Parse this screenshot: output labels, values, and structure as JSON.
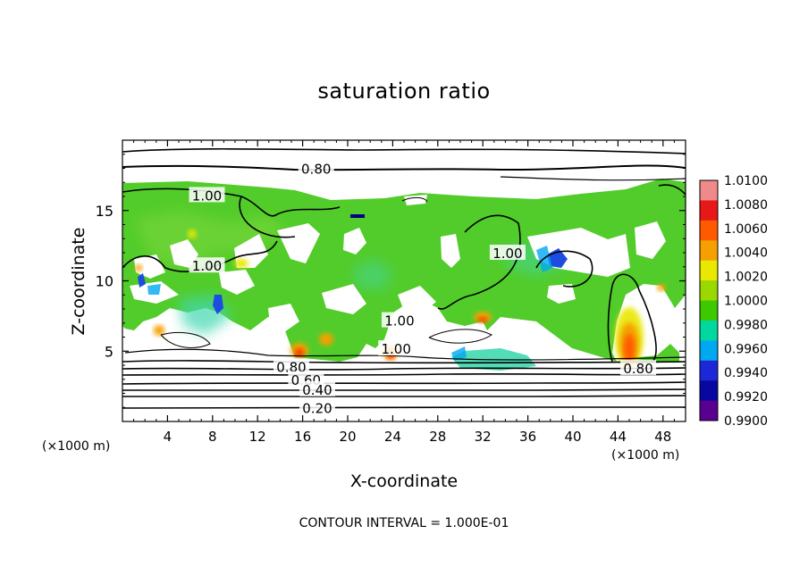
{
  "chart_data": {
    "type": "heatmap",
    "title": "saturation ratio",
    "xlabel": "X-coordinate",
    "ylabel": "Z-coordinate",
    "x_unit_label": "(×1000 m)",
    "footnote": "CONTOUR INTERVAL = 1.000E-01",
    "xlim": [
      0,
      50
    ],
    "ylim": [
      0,
      20
    ],
    "x_ticks": [
      "4",
      "8",
      "12",
      "16",
      "20",
      "24",
      "28",
      "32",
      "36",
      "40",
      "44",
      "48"
    ],
    "x_tick_values": [
      4,
      8,
      12,
      16,
      20,
      24,
      28,
      32,
      36,
      40,
      44,
      48
    ],
    "y_ticks": [
      "5",
      "10",
      "15"
    ],
    "y_tick_values": [
      5,
      10,
      15
    ],
    "colorbar": {
      "labels": [
        "1.0100",
        "1.0080",
        "1.0060",
        "1.0040",
        "1.0020",
        "1.0000",
        "0.9980",
        "0.9960",
        "0.9940",
        "0.9920",
        "0.9900"
      ],
      "values": [
        1.01,
        1.008,
        1.006,
        1.004,
        1.002,
        1.0,
        0.998,
        0.996,
        0.994,
        0.992,
        0.99
      ],
      "colors": [
        "#f08a8a",
        "#e81818",
        "#ff5a00",
        "#f5a000",
        "#e8e800",
        "#9ad800",
        "#3ec800",
        "#00d8a0",
        "#00a8f0",
        "#1c28d8",
        "#0808a0",
        "#5a0090"
      ]
    },
    "contour_labels": [
      {
        "text": "0.80",
        "x": 17.2,
        "z": 18.0
      },
      {
        "text": "1.00",
        "x": 7.5,
        "z": 16.1
      },
      {
        "text": "1.00",
        "x": 7.5,
        "z": 11.1
      },
      {
        "text": "1.00",
        "x": 34.2,
        "z": 12.0
      },
      {
        "text": "1.00",
        "x": 24.6,
        "z": 7.2
      },
      {
        "text": "1.00",
        "x": 24.3,
        "z": 5.2
      },
      {
        "text": "0.80",
        "x": 15.0,
        "z": 3.9
      },
      {
        "text": "0.60",
        "x": 16.3,
        "z": 3.0
      },
      {
        "text": "0.40",
        "x": 17.3,
        "z": 2.3
      },
      {
        "text": "0.20",
        "x": 17.3,
        "z": 1.0
      },
      {
        "text": "0.80",
        "x": 45.8,
        "z": 3.8
      }
    ],
    "description_values": {
      "supersaturated_peaks_x": [
        15.7,
        18.3,
        23.8,
        31.6,
        44.6
      ],
      "cloud_layer_z_range": [
        4,
        17
      ]
    }
  }
}
